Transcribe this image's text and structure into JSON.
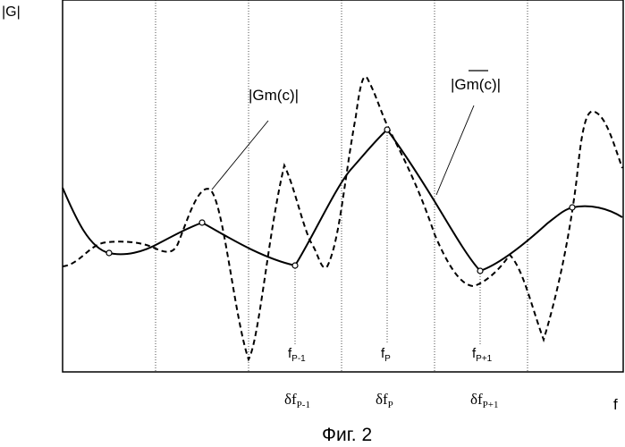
{
  "labels": {
    "y_axis": "|G|",
    "x_axis": "f",
    "dashed_curve": "|Gm(c)|",
    "solid_curve": "|Gm(c)|",
    "f_p_minus": "f",
    "f_p_minus_sub": "P-1",
    "f_p": "f",
    "f_p_sub": "P",
    "f_p_plus": "f",
    "f_p_plus_sub": "P+1",
    "delta_minus": "δf",
    "delta_minus_sub": "P-1",
    "delta_p": "δf",
    "delta_p_sub": "P",
    "delta_plus": "δf",
    "delta_plus_sub": "P+1",
    "caption": "Фиг. 2"
  }
}
